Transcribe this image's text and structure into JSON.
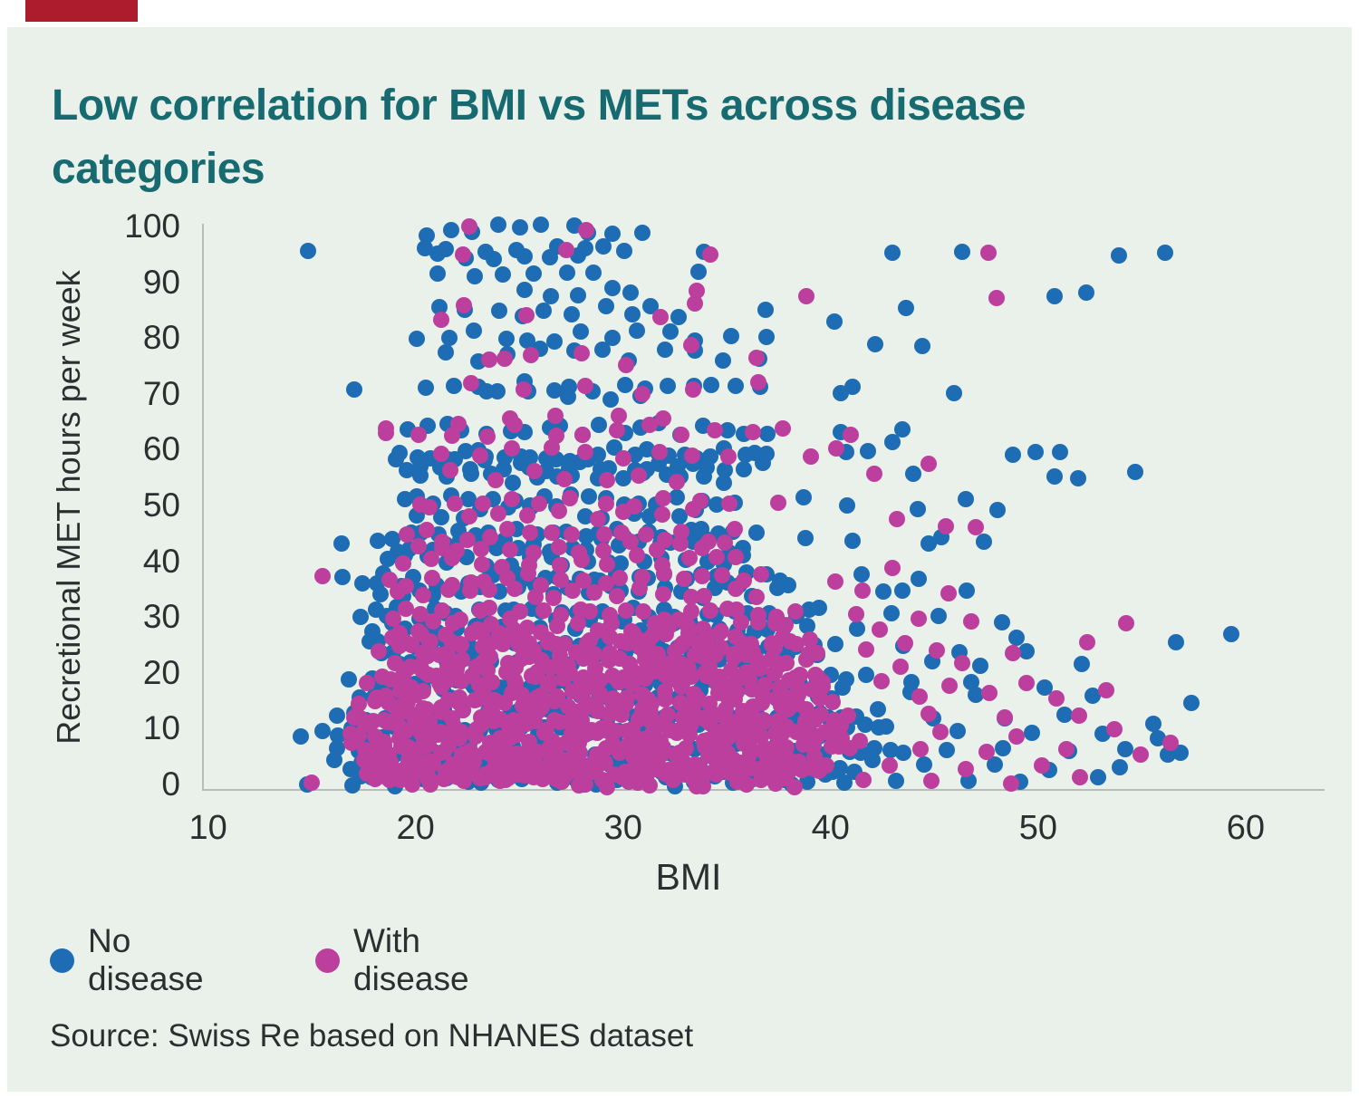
{
  "page": {
    "title": "Low correlation for BMI vs METs across disease categories",
    "source": "Source: Swiss Re based on NHANES dataset",
    "colors": {
      "background": "#e9f1ea",
      "accent_red": "#ad1c2d",
      "title_teal": "#166a70",
      "axis_gray": "#b7bdbb",
      "text": "#2b2f30",
      "no_disease_blue": "#1d6cb4",
      "with_disease_magenta": "#bc3f9e"
    }
  },
  "chart_data": {
    "type": "scatter",
    "title": "Low correlation for BMI vs METs across disease categories",
    "xlabel": "BMI",
    "ylabel": "Recretional MET hours per week",
    "x_ticks": [
      10,
      20,
      30,
      40,
      50,
      60
    ],
    "y_ticks": [
      0,
      10,
      20,
      30,
      40,
      50,
      60,
      70,
      80,
      90,
      100
    ],
    "xlim": [
      9.8,
      63.8
    ],
    "ylim": [
      -0.8,
      100.5
    ],
    "grid": false,
    "legend_position": "bottom-left",
    "rows_format": "rows are dense horizontal runs of points: [met_y, bmi_start, bmi_end, bmi_step]; points are single markers: [bmi, met]",
    "series": [
      {
        "name": "No disease",
        "color": "#1d6cb4",
        "rows": [
          [
            99.6,
            20.8,
            30.8,
            1.1
          ],
          [
            95.3,
            20.2,
            30.6,
            0.75
          ],
          [
            91.6,
            21.3,
            30.2,
            1.5
          ],
          [
            87.8,
            25.2,
            31.8,
            1.35
          ],
          [
            84.6,
            21.2,
            34.0,
            1.3
          ],
          [
            80.3,
            20.1,
            35.0,
            1.35
          ],
          [
            77.0,
            21.4,
            36.6,
            1.5
          ],
          [
            71.2,
            20.7,
            37.6,
            1.15
          ],
          [
            69.6,
            23.5,
            31.5,
            1.9
          ],
          [
            63.6,
            19.6,
            36.8,
            0.95
          ],
          [
            59.2,
            18.8,
            37.2,
            0.68
          ],
          [
            57.1,
            19.4,
            36.9,
            0.78
          ],
          [
            55.1,
            20.4,
            35.2,
            1.05
          ],
          [
            51.0,
            19.2,
            35.6,
            0.9
          ],
          [
            48.8,
            19.9,
            34.3,
            1.15
          ],
          [
            44.8,
            18.2,
            36.3,
            0.75
          ],
          [
            42.8,
            18.9,
            36.0,
            0.85
          ],
          [
            40.2,
            18.7,
            36.6,
            0.95
          ],
          [
            36.8,
            16.4,
            38.3,
            0.75
          ],
          [
            34.6,
            18.4,
            37.6,
            0.9
          ],
          [
            30.6,
            17.2,
            39.6,
            0.7
          ],
          [
            28.4,
            17.9,
            39.2,
            0.8
          ],
          [
            24.6,
            17.7,
            40.6,
            0.72
          ],
          [
            22.4,
            18.4,
            40.1,
            0.78
          ],
          [
            18.6,
            17.0,
            41.6,
            0.7
          ],
          [
            16.4,
            17.4,
            41.1,
            0.75
          ],
          [
            12.4,
            16.2,
            42.6,
            0.68
          ],
          [
            9.6,
            15.8,
            43.1,
            0.66
          ],
          [
            6.4,
            16.4,
            43.6,
            0.64
          ],
          [
            3.4,
            16.9,
            42.2,
            0.68
          ],
          [
            0.8,
            16.7,
            40.6,
            0.72
          ]
        ],
        "points": [
          [
            14.9,
            95.8
          ],
          [
            33.8,
            95.4
          ],
          [
            43.0,
            95.2
          ],
          [
            46.3,
            95.2
          ],
          [
            53.9,
            95.2
          ],
          [
            56.2,
            95.5
          ],
          [
            33.6,
            91.5
          ],
          [
            52.3,
            87.8
          ],
          [
            50.9,
            87.4
          ],
          [
            43.6,
            85.3
          ],
          [
            40.3,
            83.4
          ],
          [
            37.0,
            85.0
          ],
          [
            42.1,
            79.0
          ],
          [
            44.4,
            78.8
          ],
          [
            36.9,
            80.5
          ],
          [
            16.9,
            71.2
          ],
          [
            41.0,
            71.5
          ],
          [
            40.6,
            69.8
          ],
          [
            46.0,
            70.3
          ],
          [
            40.4,
            63.6
          ],
          [
            43.4,
            64.0
          ],
          [
            40.8,
            59.2
          ],
          [
            41.8,
            60.1
          ],
          [
            43.0,
            61.7
          ],
          [
            48.8,
            58.6
          ],
          [
            50.0,
            59.2
          ],
          [
            51.1,
            59.2
          ],
          [
            54.7,
            56.2
          ],
          [
            50.7,
            54.8
          ],
          [
            51.8,
            54.8
          ],
          [
            44.0,
            55.3
          ],
          [
            38.8,
            51.0
          ],
          [
            40.9,
            50.4
          ],
          [
            46.4,
            51.1
          ],
          [
            44.2,
            49.6
          ],
          [
            48.1,
            49.4
          ],
          [
            16.5,
            43.5
          ],
          [
            38.7,
            44.6
          ],
          [
            41.1,
            44.1
          ],
          [
            45.2,
            44.4
          ],
          [
            44.7,
            42.9
          ],
          [
            47.5,
            43.1
          ],
          [
            41.5,
            37.4
          ],
          [
            44.1,
            36.6
          ],
          [
            42.5,
            34.7
          ],
          [
            43.4,
            34.7
          ],
          [
            46.6,
            35.1
          ],
          [
            42.8,
            30.6
          ],
          [
            45.3,
            30.0
          ],
          [
            48.2,
            29.5
          ],
          [
            59.4,
            27.2
          ],
          [
            41.2,
            28.4
          ],
          [
            48.9,
            26.1
          ],
          [
            56.7,
            25.5
          ],
          [
            43.5,
            24.5
          ],
          [
            46.1,
            24.1
          ],
          [
            49.5,
            23.6
          ],
          [
            44.8,
            22.1
          ],
          [
            47.3,
            21.8
          ],
          [
            52.2,
            22.0
          ],
          [
            44.0,
            18.6
          ],
          [
            46.8,
            18.1
          ],
          [
            50.3,
            17.6
          ],
          [
            57.3,
            14.8
          ],
          [
            43.8,
            16.1
          ],
          [
            47.0,
            15.6
          ],
          [
            52.5,
            15.9
          ],
          [
            45.0,
            12.1
          ],
          [
            48.5,
            11.6
          ],
          [
            51.2,
            12.2
          ],
          [
            55.5,
            11.0
          ],
          [
            14.4,
            8.3
          ],
          [
            46.2,
            9.6
          ],
          [
            49.8,
            9.1
          ],
          [
            53.2,
            9.6
          ],
          [
            55.8,
            8.6
          ],
          [
            45.5,
            6.1
          ],
          [
            48.2,
            6.6
          ],
          [
            51.6,
            5.6
          ],
          [
            54.2,
            6.4
          ],
          [
            56.8,
            6.1
          ],
          [
            16.0,
            4.6
          ],
          [
            44.6,
            3.1
          ],
          [
            47.8,
            3.6
          ],
          [
            50.5,
            2.6
          ],
          [
            53.8,
            3.1
          ],
          [
            56.2,
            5.8
          ],
          [
            43.2,
            0.6
          ],
          [
            46.5,
            1.1
          ],
          [
            49.2,
            0.6
          ],
          [
            52.8,
            1.1
          ],
          [
            14.8,
            0.4
          ]
        ]
      },
      {
        "name": "With disease",
        "color": "#bc3f9e",
        "rows": [
          [
            76.4,
            23.4,
            30.4,
            2.3
          ],
          [
            71.0,
            22.4,
            36.4,
            2.8
          ],
          [
            65.3,
            22.0,
            32.2,
            2.5
          ],
          [
            63.4,
            18.6,
            37.8,
            1.6
          ],
          [
            59.3,
            21.4,
            36.2,
            1.7
          ],
          [
            55.2,
            21.9,
            34.3,
            1.8
          ],
          [
            51.0,
            20.4,
            35.2,
            1.45
          ],
          [
            48.7,
            20.9,
            34.6,
            1.55
          ],
          [
            44.7,
            19.4,
            36.1,
            1.05
          ],
          [
            42.7,
            19.9,
            35.6,
            1.15
          ],
          [
            40.1,
            19.4,
            36.2,
            1.25
          ],
          [
            36.7,
            18.7,
            37.1,
            0.95
          ],
          [
            34.5,
            19.4,
            36.6,
            1.05
          ],
          [
            30.5,
            18.9,
            38.1,
            0.8
          ],
          [
            28.3,
            19.4,
            38.6,
            0.85
          ],
          [
            26.1,
            19.0,
            39.0,
            0.6
          ],
          [
            24.5,
            18.4,
            39.6,
            0.58
          ],
          [
            22.3,
            18.9,
            39.2,
            0.6
          ],
          [
            20.2,
            19.2,
            39.4,
            0.56
          ],
          [
            18.5,
            17.8,
            40.1,
            0.56
          ],
          [
            16.3,
            18.1,
            39.6,
            0.58
          ],
          [
            14.2,
            17.4,
            40.4,
            0.54
          ],
          [
            12.3,
            17.0,
            41.1,
            0.54
          ],
          [
            10.4,
            17.8,
            40.8,
            0.56
          ],
          [
            8.6,
            16.9,
            41.3,
            0.54
          ],
          [
            6.3,
            17.1,
            41.1,
            0.52
          ],
          [
            4.6,
            17.9,
            40.2,
            0.56
          ],
          [
            3.2,
            17.5,
            40.1,
            0.54
          ],
          [
            1.8,
            18.3,
            39.0,
            0.6
          ],
          [
            0.7,
            17.9,
            38.6,
            0.62
          ]
        ],
        "points": [
          [
            22.6,
            99.6
          ],
          [
            28.1,
            99.4
          ],
          [
            27.2,
            96.1
          ],
          [
            34.2,
            95.2
          ],
          [
            47.6,
            95.0
          ],
          [
            22.4,
            95.3
          ],
          [
            47.9,
            87.4
          ],
          [
            38.7,
            87.6
          ],
          [
            33.4,
            88.6
          ],
          [
            22.3,
            86.0
          ],
          [
            21.3,
            83.2
          ],
          [
            33.6,
            86.3
          ],
          [
            25.3,
            84.3
          ],
          [
            31.7,
            84.3
          ],
          [
            24.2,
            76.5
          ],
          [
            33.2,
            79.0
          ],
          [
            36.4,
            76.3
          ],
          [
            18.6,
            63.5
          ],
          [
            40.9,
            62.5
          ],
          [
            40.3,
            60.2
          ],
          [
            42.1,
            55.3
          ],
          [
            39.0,
            59.0
          ],
          [
            44.6,
            57.4
          ],
          [
            37.5,
            50.5
          ],
          [
            45.7,
            46.3
          ],
          [
            47.1,
            46.3
          ],
          [
            43.1,
            47.2
          ],
          [
            15.6,
            37.4
          ],
          [
            40.1,
            36.6
          ],
          [
            43.0,
            39.0
          ],
          [
            45.6,
            34.7
          ],
          [
            41.6,
            34.4
          ],
          [
            41.1,
            30.1
          ],
          [
            44.1,
            29.6
          ],
          [
            46.8,
            29.1
          ],
          [
            54.3,
            28.7
          ],
          [
            42.3,
            27.5
          ],
          [
            52.4,
            25.5
          ],
          [
            43.6,
            25.1
          ],
          [
            41.8,
            24.1
          ],
          [
            45.2,
            23.6
          ],
          [
            48.8,
            23.1
          ],
          [
            43.4,
            21.6
          ],
          [
            46.4,
            22.1
          ],
          [
            42.6,
            18.1
          ],
          [
            45.8,
            17.6
          ],
          [
            49.3,
            18.1
          ],
          [
            53.4,
            17.2
          ],
          [
            44.3,
            15.9
          ],
          [
            47.6,
            16.3
          ],
          [
            50.8,
            15.7
          ],
          [
            44.8,
            12.6
          ],
          [
            48.3,
            11.9
          ],
          [
            52.0,
            12.3
          ],
          [
            45.3,
            9.3
          ],
          [
            49.0,
            8.9
          ],
          [
            53.6,
            9.5
          ],
          [
            56.4,
            7.1
          ],
          [
            44.2,
            6.3
          ],
          [
            47.5,
            5.9
          ],
          [
            51.4,
            6.5
          ],
          [
            54.8,
            5.6
          ],
          [
            15.1,
            0.6
          ],
          [
            41.5,
            0.7
          ],
          [
            44.9,
            1.1
          ],
          [
            48.6,
            0.5
          ],
          [
            51.9,
            0.9
          ],
          [
            42.9,
            3.5
          ],
          [
            46.6,
            2.9
          ],
          [
            50.2,
            3.3
          ]
        ]
      }
    ]
  }
}
